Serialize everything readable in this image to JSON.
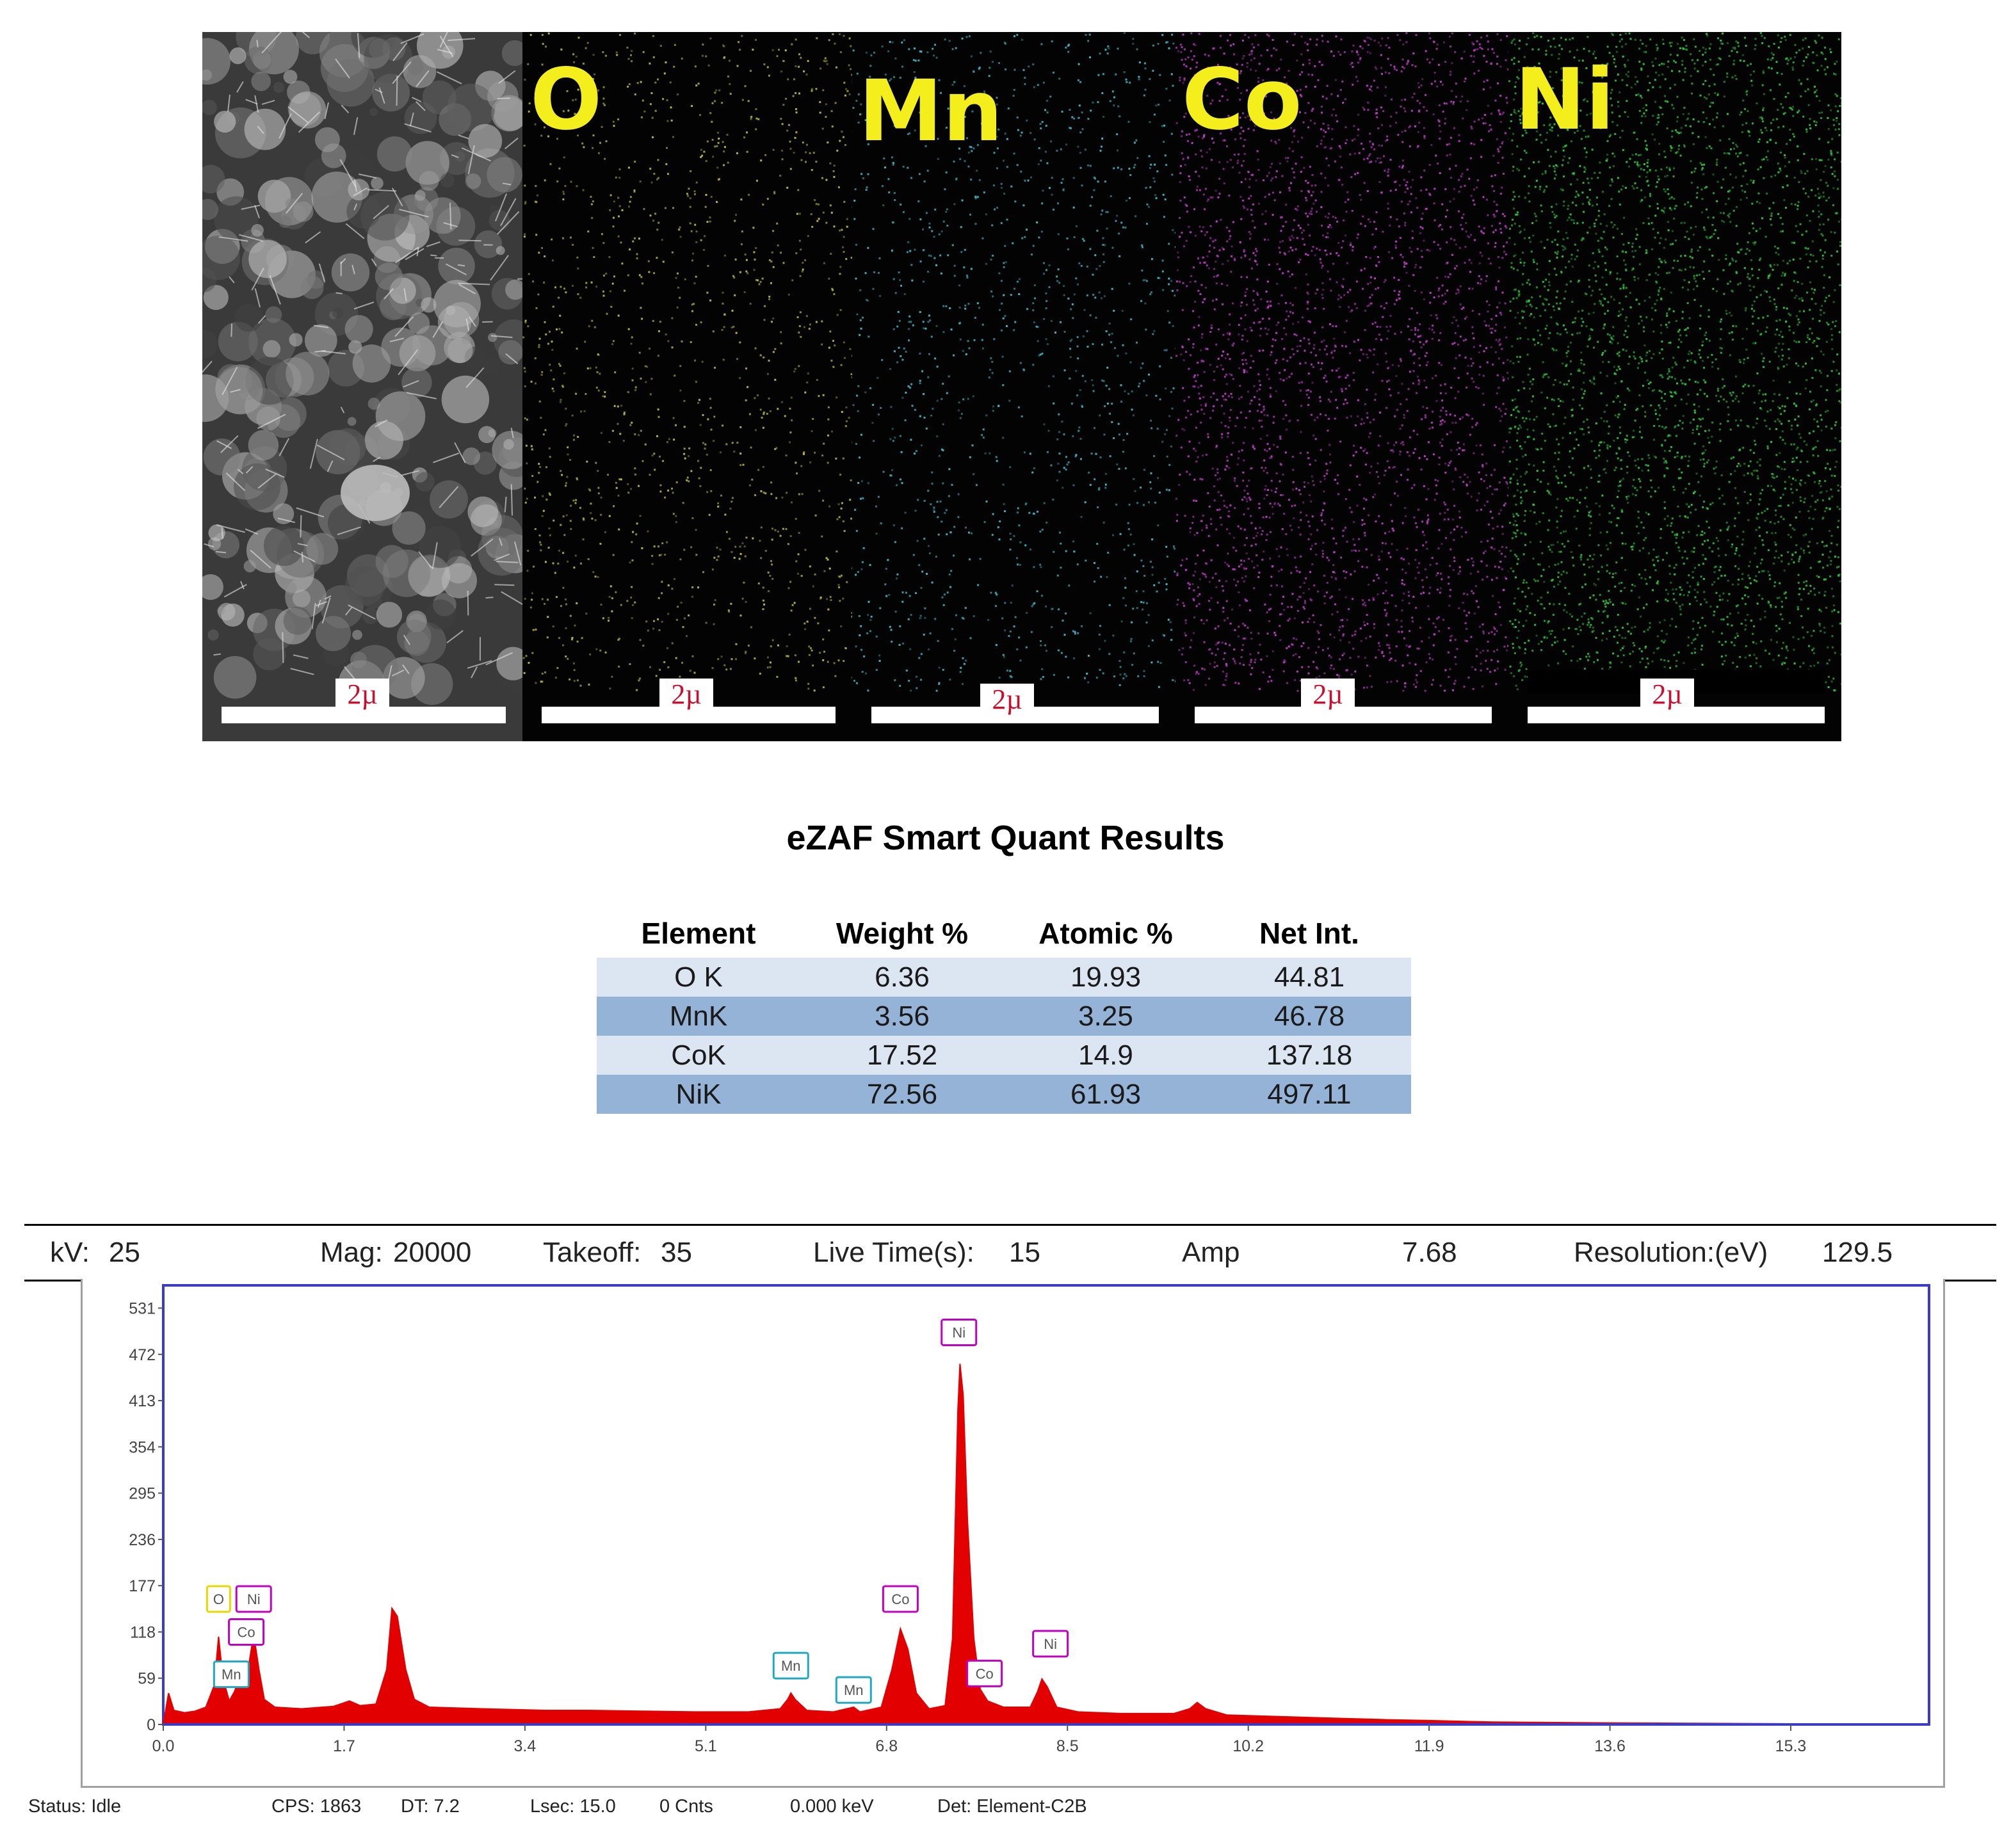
{
  "maps": {
    "panels": [
      {
        "label": "",
        "scale": "2µ",
        "kind": "sem",
        "color": "#cfcfcf"
      },
      {
        "label": "O",
        "scale": "2µ",
        "kind": "dots",
        "color": "#b8b83c"
      },
      {
        "label": "Mn",
        "scale": "2µ",
        "kind": "dots",
        "color": "#3fb7c8"
      },
      {
        "label": "Co",
        "scale": "2µ",
        "kind": "dots",
        "color": "#c03cc8"
      },
      {
        "label": "Ni",
        "scale": "2µ",
        "kind": "dots",
        "color": "#2fc43a"
      }
    ]
  },
  "quant": {
    "title": "eZAF Smart Quant Results",
    "headers": [
      "Element",
      "Weight %",
      "Atomic %",
      "Net Int."
    ],
    "rows": [
      [
        "O K",
        "6.36",
        "19.93",
        "44.81"
      ],
      [
        "MnK",
        "3.56",
        "3.25",
        "46.78"
      ],
      [
        "CoK",
        "17.52",
        "14.9",
        "137.18"
      ],
      [
        "NiK",
        "72.56",
        "61.93",
        "497.11"
      ]
    ]
  },
  "params": {
    "kv_label": "kV:",
    "kv_value": "25",
    "mag_label": "Mag:",
    "mag_value": "20000",
    "takeoff_label": "Takeoff:",
    "takeoff_value": "35",
    "livetime_label": "Live Time(s):",
    "livetime_value": "15",
    "amp_label": "Amp",
    "amp_value": "7.68",
    "resolution_label": "Resolution:(eV)",
    "resolution_value": "129.5"
  },
  "status": {
    "status": "Status: Idle",
    "cps": "CPS: 1863",
    "dt": "DT: 7.2",
    "lsec": "Lsec: 15.0",
    "cnts": "0 Cnts",
    "kev": "0.000 keV",
    "det": "Det: Element-C2B"
  },
  "chart_data": {
    "type": "area",
    "xlabel": "",
    "ylabel": "",
    "xlim": [
      0,
      16.6
    ],
    "ylim": [
      0,
      560
    ],
    "x_ticks": [
      "0.0",
      "1.7",
      "3.4",
      "5.1",
      "6.8",
      "8.5",
      "10.2",
      "11.9",
      "13.6",
      "15.3"
    ],
    "x_tick_values": [
      0.0,
      1.7,
      3.4,
      5.1,
      6.8,
      8.5,
      10.2,
      11.9,
      13.6,
      15.3
    ],
    "y_ticks": [
      "0",
      "59",
      "118",
      "177",
      "236",
      "295",
      "354",
      "413",
      "472",
      "531"
    ],
    "y_tick_values": [
      0,
      59,
      118,
      177,
      236,
      295,
      354,
      413,
      472,
      531
    ],
    "color": "#e30000",
    "series": [
      {
        "values": [
          [
            0.0,
            0
          ],
          [
            0.05,
            40
          ],
          [
            0.1,
            18
          ],
          [
            0.2,
            15
          ],
          [
            0.3,
            17
          ],
          [
            0.4,
            22
          ],
          [
            0.48,
            50
          ],
          [
            0.52,
            112
          ],
          [
            0.56,
            60
          ],
          [
            0.62,
            30
          ],
          [
            0.67,
            42
          ],
          [
            0.72,
            62
          ],
          [
            0.76,
            52
          ],
          [
            0.8,
            72
          ],
          [
            0.85,
            115
          ],
          [
            0.9,
            70
          ],
          [
            0.95,
            32
          ],
          [
            1.05,
            22
          ],
          [
            1.3,
            20
          ],
          [
            1.6,
            23
          ],
          [
            1.75,
            30
          ],
          [
            1.85,
            24
          ],
          [
            2.0,
            26
          ],
          [
            2.1,
            70
          ],
          [
            2.15,
            148
          ],
          [
            2.2,
            138
          ],
          [
            2.28,
            70
          ],
          [
            2.36,
            32
          ],
          [
            2.5,
            22
          ],
          [
            3.0,
            20
          ],
          [
            3.6,
            18
          ],
          [
            4.0,
            18
          ],
          [
            4.5,
            17
          ],
          [
            5.0,
            16
          ],
          [
            5.5,
            16
          ],
          [
            5.8,
            20
          ],
          [
            5.87,
            32
          ],
          [
            5.9,
            40
          ],
          [
            5.94,
            32
          ],
          [
            6.05,
            18
          ],
          [
            6.3,
            16
          ],
          [
            6.49,
            22
          ],
          [
            6.55,
            16
          ],
          [
            6.75,
            22
          ],
          [
            6.85,
            70
          ],
          [
            6.93,
            122
          ],
          [
            7.0,
            96
          ],
          [
            7.08,
            40
          ],
          [
            7.2,
            20
          ],
          [
            7.35,
            24
          ],
          [
            7.42,
            110
          ],
          [
            7.47,
            400
          ],
          [
            7.49,
            460
          ],
          [
            7.52,
            420
          ],
          [
            7.56,
            260
          ],
          [
            7.62,
            110
          ],
          [
            7.68,
            45
          ],
          [
            7.75,
            30
          ],
          [
            7.9,
            22
          ],
          [
            8.15,
            22
          ],
          [
            8.22,
            42
          ],
          [
            8.26,
            58
          ],
          [
            8.31,
            48
          ],
          [
            8.4,
            22
          ],
          [
            8.6,
            16
          ],
          [
            9.0,
            14
          ],
          [
            9.5,
            14
          ],
          [
            9.65,
            20
          ],
          [
            9.72,
            28
          ],
          [
            9.8,
            20
          ],
          [
            10.0,
            12
          ],
          [
            10.5,
            10
          ],
          [
            11.0,
            8
          ],
          [
            11.5,
            6
          ],
          [
            11.9,
            5
          ],
          [
            12.5,
            3
          ],
          [
            13.5,
            2
          ],
          [
            15.0,
            1
          ],
          [
            16.6,
            0
          ]
        ]
      }
    ],
    "peak_labels": [
      {
        "text": "O",
        "x": 0.52,
        "y": 160,
        "color": "#e6d800"
      },
      {
        "text": "Ni",
        "x": 0.85,
        "y": 160,
        "color": "#c000c0"
      },
      {
        "text": "Co",
        "x": 0.78,
        "y": 118,
        "color": "#c000c0"
      },
      {
        "text": "Mn",
        "x": 0.64,
        "y": 64,
        "color": "#20a8c0"
      },
      {
        "text": "Mn",
        "x": 5.9,
        "y": 75,
        "color": "#20a8c0"
      },
      {
        "text": "Mn",
        "x": 6.49,
        "y": 44,
        "color": "#20a8c0"
      },
      {
        "text": "Co",
        "x": 6.93,
        "y": 160,
        "color": "#c000c0"
      },
      {
        "text": "Ni",
        "x": 7.48,
        "y": 500,
        "color": "#c000c0"
      },
      {
        "text": "Co",
        "x": 7.72,
        "y": 65,
        "color": "#c000c0"
      },
      {
        "text": "Ni",
        "x": 8.34,
        "y": 103,
        "color": "#c000c0"
      }
    ]
  }
}
